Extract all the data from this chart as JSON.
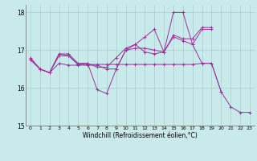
{
  "xlabel": "Windchill (Refroidissement éolien,°C)",
  "bg_color": "#c8eaea",
  "line_color": "#993399",
  "grid_color": "#aacccc",
  "xlim": [
    -0.5,
    23.5
  ],
  "ylim": [
    15.0,
    18.2
  ],
  "yticks": [
    15,
    16,
    17,
    18
  ],
  "xticks": [
    0,
    1,
    2,
    3,
    4,
    5,
    6,
    7,
    8,
    9,
    10,
    11,
    12,
    13,
    14,
    15,
    16,
    17,
    18,
    19,
    20,
    21,
    22,
    23
  ],
  "series": [
    [
      16.8,
      16.5,
      16.4,
      16.9,
      16.9,
      16.65,
      16.65,
      15.95,
      15.85,
      16.5,
      17.0,
      17.05,
      17.05,
      17.0,
      16.95,
      17.35,
      17.25,
      17.15,
      16.65,
      16.65,
      15.9,
      15.5,
      15.35,
      15.35
    ],
    [
      16.75,
      16.5,
      16.4,
      16.85,
      16.85,
      16.62,
      16.62,
      16.62,
      16.62,
      16.62,
      16.62,
      16.62,
      16.62,
      16.62,
      16.62,
      16.62,
      16.62,
      16.62,
      16.65,
      16.65,
      15.9,
      null,
      null,
      null
    ],
    [
      16.75,
      16.5,
      16.4,
      16.9,
      16.85,
      16.62,
      16.65,
      16.55,
      16.55,
      16.8,
      17.05,
      17.15,
      17.35,
      17.55,
      16.95,
      18.0,
      18.0,
      17.15,
      17.55,
      17.55,
      null,
      null,
      null,
      null
    ],
    [
      16.75,
      16.5,
      16.4,
      16.65,
      16.6,
      16.6,
      16.6,
      16.6,
      16.5,
      16.5,
      17.0,
      17.15,
      16.95,
      16.9,
      16.95,
      17.4,
      17.3,
      17.3,
      17.6,
      17.6,
      null,
      null,
      null,
      null
    ]
  ]
}
